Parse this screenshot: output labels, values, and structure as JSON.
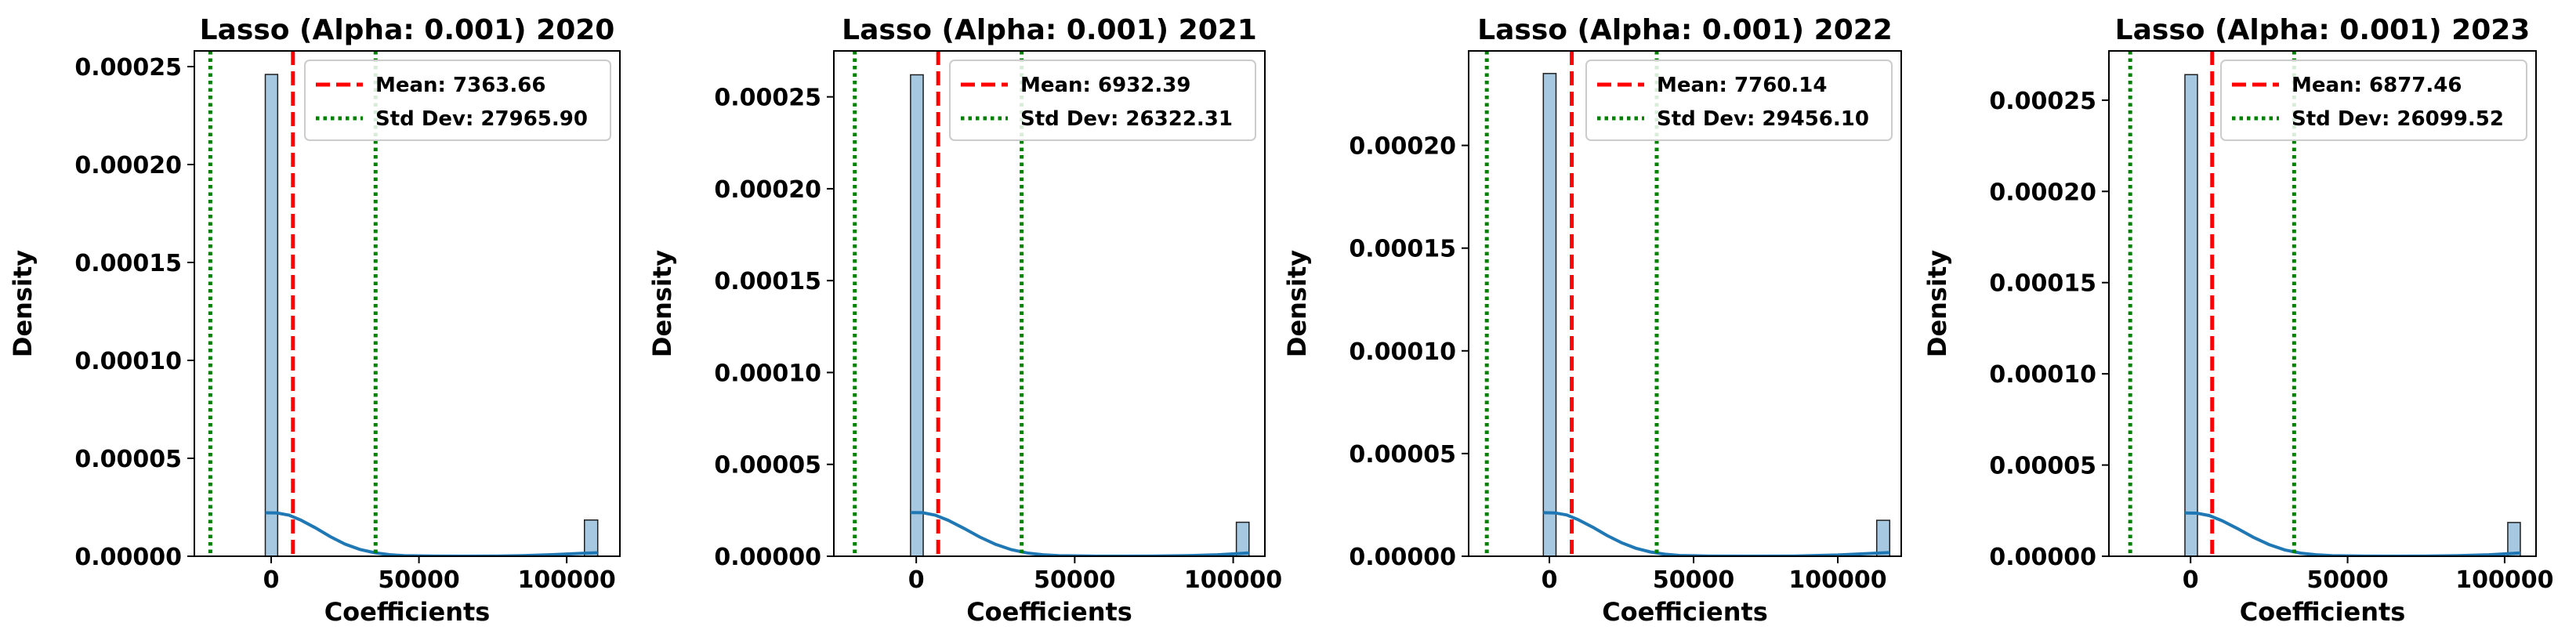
{
  "chart_data": [
    {
      "type": "histogram",
      "title": "Lasso (Alpha: 0.001) 2020",
      "xlabel": "Coefficients",
      "ylabel": "Density",
      "xlim": [
        -26000,
        118000
      ],
      "ylim": [
        0,
        0.000258
      ],
      "xticks": [
        0,
        50000,
        100000
      ],
      "xtick_labels": [
        "0",
        "50000",
        "100000"
      ],
      "yticks": [
        0,
        5e-05,
        0.0001,
        0.00015,
        0.0002,
        0.00025
      ],
      "ytick_labels": [
        "0.00000",
        "0.00005",
        "0.00010",
        "0.00015",
        "0.00020",
        "0.00025"
      ],
      "bars": [
        {
          "x0": -2000,
          "x1": 2200,
          "density": 0.000246
        },
        {
          "x0": 106000,
          "x1": 110500,
          "density": 1.85e-05
        }
      ],
      "kde": [
        [
          -2000,
          2.22e-05
        ],
        [
          2000,
          2.21e-05
        ],
        [
          6000,
          2.1e-05
        ],
        [
          10000,
          1.85e-05
        ],
        [
          15000,
          1.45e-05
        ],
        [
          20000,
          1e-05
        ],
        [
          25000,
          6.2e-06
        ],
        [
          30000,
          3.5e-06
        ],
        [
          35000,
          1.8e-06
        ],
        [
          40000,
          8e-07
        ],
        [
          45000,
          3e-07
        ],
        [
          55000,
          8e-08
        ],
        [
          65000,
          3e-08
        ],
        [
          75000,
          8e-08
        ],
        [
          85000,
          3e-07
        ],
        [
          95000,
          8e-07
        ],
        [
          105000,
          1.5e-06
        ],
        [
          110500,
          1.8e-06
        ]
      ],
      "mean_value": 7363.66,
      "std_lines": [
        -20602.24,
        35329.56
      ],
      "legend": {
        "position": "upper right",
        "mean_label": "Mean: 7363.66",
        "std_label": "Std Dev: 27965.90"
      }
    },
    {
      "type": "histogram",
      "title": "Lasso (Alpha: 0.001) 2021",
      "xlabel": "Coefficients",
      "ylabel": "Density",
      "xlim": [
        -26000,
        110000
      ],
      "ylim": [
        0,
        0.000275
      ],
      "xticks": [
        0,
        50000,
        100000
      ],
      "xtick_labels": [
        "0",
        "50000",
        "100000"
      ],
      "yticks": [
        0,
        5e-05,
        0.0001,
        0.00015,
        0.0002,
        0.00025
      ],
      "ytick_labels": [
        "0.00000",
        "0.00005",
        "0.00010",
        "0.00015",
        "0.00020",
        "0.00025"
      ],
      "bars": [
        {
          "x0": -1800,
          "x1": 2200,
          "density": 0.000262
        },
        {
          "x0": 101000,
          "x1": 105000,
          "density": 1.85e-05
        }
      ],
      "kde": [
        [
          -1800,
          2.38e-05
        ],
        [
          2000,
          2.37e-05
        ],
        [
          6000,
          2.24e-05
        ],
        [
          10000,
          1.96e-05
        ],
        [
          15000,
          1.52e-05
        ],
        [
          20000,
          1.05e-05
        ],
        [
          25000,
          6.5e-06
        ],
        [
          30000,
          3.6e-06
        ],
        [
          35000,
          1.8e-06
        ],
        [
          40000,
          8e-07
        ],
        [
          45000,
          3e-07
        ],
        [
          55000,
          8e-08
        ],
        [
          65000,
          3e-08
        ],
        [
          75000,
          8e-08
        ],
        [
          85000,
          3e-07
        ],
        [
          95000,
          8e-07
        ],
        [
          101000,
          1.4e-06
        ],
        [
          105000,
          1.8e-06
        ]
      ],
      "mean_value": 6932.39,
      "std_lines": [
        -19389.92,
        33254.7
      ],
      "legend": {
        "position": "upper right",
        "mean_label": "Mean: 6932.39",
        "std_label": "Std Dev: 26322.31"
      }
    },
    {
      "type": "histogram",
      "title": "Lasso (Alpha: 0.001) 2022",
      "xlabel": "Coefficients",
      "ylabel": "Density",
      "xlim": [
        -28000,
        122000
      ],
      "ylim": [
        0,
        0.000246
      ],
      "xticks": [
        0,
        50000,
        100000
      ],
      "xtick_labels": [
        "0",
        "50000",
        "100000"
      ],
      "yticks": [
        0,
        5e-05,
        0.0001,
        0.00015,
        0.0002
      ],
      "ytick_labels": [
        "0.00000",
        "0.00005",
        "0.00010",
        "0.00015",
        "0.00020"
      ],
      "bars": [
        {
          "x0": -2100,
          "x1": 2300,
          "density": 0.000235
        },
        {
          "x0": 113500,
          "x1": 118000,
          "density": 1.75e-05
        }
      ],
      "kde": [
        [
          -2100,
          2.12e-05
        ],
        [
          2000,
          2.11e-05
        ],
        [
          6000,
          2.01e-05
        ],
        [
          10000,
          1.78e-05
        ],
        [
          15000,
          1.42e-05
        ],
        [
          20000,
          1.01e-05
        ],
        [
          25000,
          6.6e-06
        ],
        [
          30000,
          3.9e-06
        ],
        [
          35000,
          2.1e-06
        ],
        [
          40000,
          1e-06
        ],
        [
          45000,
          4e-07
        ],
        [
          55000,
          1e-07
        ],
        [
          70000,
          3e-08
        ],
        [
          85000,
          1e-07
        ],
        [
          100000,
          6e-07
        ],
        [
          110000,
          1.3e-06
        ],
        [
          118000,
          1.8e-06
        ]
      ],
      "mean_value": 7760.14,
      "std_lines": [
        -21695.96,
        37216.24
      ],
      "legend": {
        "position": "upper right",
        "mean_label": "Mean: 7760.14",
        "std_label": "Std Dev: 29456.10"
      }
    },
    {
      "type": "histogram",
      "title": "Lasso (Alpha: 0.001) 2023",
      "xlabel": "Coefficients",
      "ylabel": "Density",
      "xlim": [
        -26000,
        110000
      ],
      "ylim": [
        0,
        0.000277
      ],
      "xticks": [
        0,
        50000,
        100000
      ],
      "xtick_labels": [
        "0",
        "50000",
        "100000"
      ],
      "yticks": [
        0,
        5e-05,
        0.0001,
        0.00015,
        0.0002,
        0.00025
      ],
      "ytick_labels": [
        "0.00000",
        "0.00005",
        "0.00010",
        "0.00015",
        "0.00020",
        "0.00025"
      ],
      "bars": [
        {
          "x0": -1800,
          "x1": 2200,
          "density": 0.000264
        },
        {
          "x0": 101000,
          "x1": 105000,
          "density": 1.85e-05
        }
      ],
      "kde": [
        [
          -1800,
          2.37e-05
        ],
        [
          2000,
          2.36e-05
        ],
        [
          6000,
          2.23e-05
        ],
        [
          10000,
          1.95e-05
        ],
        [
          15000,
          1.51e-05
        ],
        [
          20000,
          1.04e-05
        ],
        [
          25000,
          6.4e-06
        ],
        [
          30000,
          3.5e-06
        ],
        [
          35000,
          1.7e-06
        ],
        [
          40000,
          8e-07
        ],
        [
          45000,
          3e-07
        ],
        [
          55000,
          8e-08
        ],
        [
          65000,
          3e-08
        ],
        [
          75000,
          8e-08
        ],
        [
          85000,
          3e-07
        ],
        [
          95000,
          8e-07
        ],
        [
          101000,
          1.4e-06
        ],
        [
          105000,
          1.8e-06
        ]
      ],
      "mean_value": 6877.46,
      "std_lines": [
        -19222.06,
        32976.98
      ],
      "legend": {
        "position": "upper right",
        "mean_label": "Mean: 6877.46",
        "std_label": "Std Dev: 26099.52"
      }
    }
  ],
  "colors": {
    "bar_fill": "#a6c8e0",
    "bar_edge": "#1f1f1f",
    "kde_line": "#1f77b4",
    "mean_line": "#ff0000",
    "std_line": "#008000",
    "axis": "#000000",
    "legend_edge": "#cccccc"
  }
}
